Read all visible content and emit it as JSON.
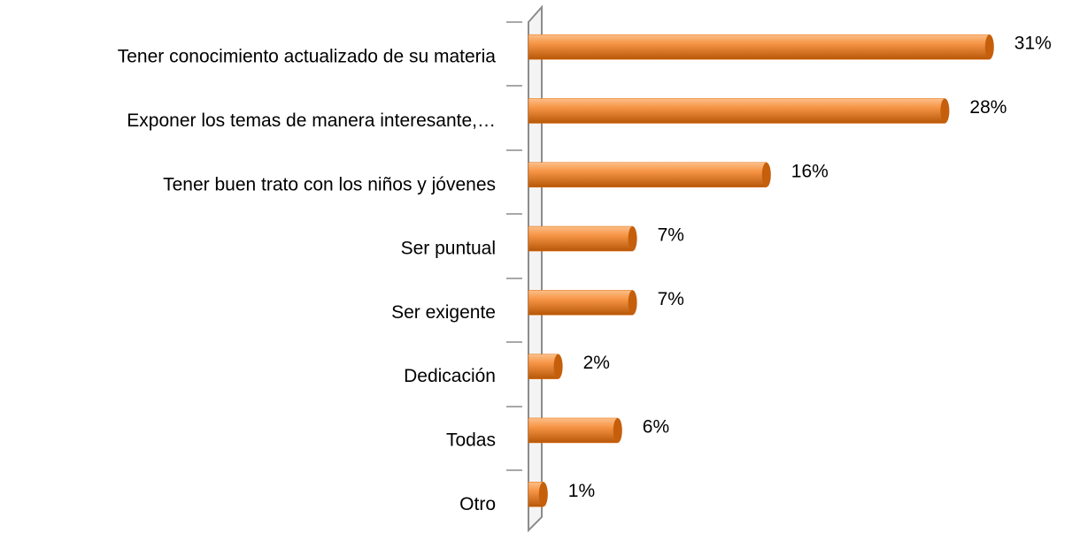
{
  "chart_data": {
    "type": "bar",
    "orientation": "horizontal",
    "categories": [
      "Tener conocimiento actualizado de su materia",
      "Exponer los temas de manera interesante,…",
      "Tener buen trato con los niños y jóvenes",
      "Ser puntual",
      "Ser exigente",
      "Dedicación",
      "Todas",
      "Otro"
    ],
    "values": [
      31,
      28,
      16,
      7,
      7,
      2,
      6,
      1
    ],
    "value_labels": [
      "31%",
      "28%",
      "16%",
      "7%",
      "7%",
      "2%",
      "6%",
      "1%"
    ],
    "color": "#e46c0a"
  }
}
